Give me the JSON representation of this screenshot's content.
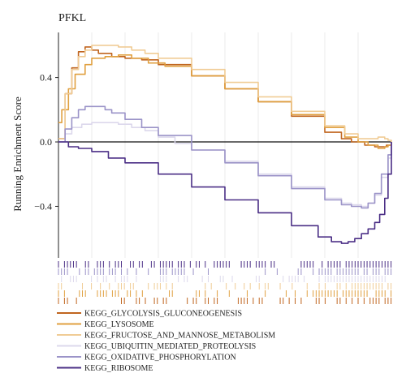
{
  "chart_data": {
    "type": "line",
    "title": "PFKL",
    "ylabel": "Running Enrichment Score",
    "xlabel": "",
    "ylim": [
      -0.72,
      0.68
    ],
    "xlim": [
      0,
      100
    ],
    "yticks": [
      -0.4,
      0.0,
      0.4
    ],
    "ytick_labels": [
      "−0.4",
      "0.0",
      "0.4"
    ],
    "grid": "vertical",
    "legend_position": "bottom-left",
    "series": [
      {
        "name": "KEGG_GLYCOLYSIS_GLUCONEOGENESIS",
        "color": "#c0651f",
        "x": [
          0,
          2,
          4,
          6,
          8,
          10,
          12,
          16,
          20,
          25,
          30,
          40,
          50,
          60,
          70,
          80,
          85,
          88,
          92,
          95,
          97,
          98.5,
          100
        ],
        "y": [
          0.02,
          0.3,
          0.46,
          0.56,
          0.59,
          0.57,
          0.55,
          0.53,
          0.52,
          0.51,
          0.48,
          0.41,
          0.33,
          0.25,
          0.16,
          0.06,
          0.02,
          0.0,
          -0.02,
          -0.03,
          -0.03,
          -0.02,
          0.0
        ]
      },
      {
        "name": "KEGG_LYSOSOME",
        "color": "#e0a040",
        "x": [
          0,
          1,
          3,
          5,
          8,
          10,
          14,
          18,
          22,
          27,
          32,
          40,
          50,
          60,
          70,
          80,
          86,
          90,
          93,
          96,
          98,
          99,
          100
        ],
        "y": [
          0.12,
          0.2,
          0.33,
          0.42,
          0.48,
          0.52,
          0.53,
          0.54,
          0.52,
          0.49,
          0.47,
          0.41,
          0.33,
          0.25,
          0.17,
          0.09,
          0.03,
          0.0,
          -0.02,
          -0.04,
          -0.03,
          -0.02,
          0.0
        ]
      },
      {
        "name": "KEGG_FRUCTOSE_AND_MANNOSE_METABOLISM",
        "color": "#f0cc95",
        "x": [
          0,
          2,
          4,
          6,
          8,
          10,
          14,
          18,
          22,
          26,
          30,
          40,
          50,
          60,
          70,
          80,
          86,
          90,
          94,
          96,
          98,
          99,
          100
        ],
        "y": [
          0.02,
          0.3,
          0.45,
          0.53,
          0.57,
          0.6,
          0.6,
          0.59,
          0.57,
          0.55,
          0.52,
          0.45,
          0.37,
          0.28,
          0.19,
          0.1,
          0.05,
          0.02,
          0.02,
          0.03,
          0.02,
          0.01,
          0.0
        ]
      },
      {
        "name": "KEGG_UBIQUITIN_MEDIATED_PROTEOLYSIS",
        "color": "#dcd8ec",
        "x": [
          0,
          2,
          4,
          7,
          10,
          14,
          18,
          22,
          26,
          30,
          35,
          40,
          50,
          60,
          70,
          80,
          85,
          88,
          91,
          93,
          95,
          97,
          99,
          100
        ],
        "y": [
          0.0,
          0.05,
          0.09,
          0.11,
          0.12,
          0.12,
          0.11,
          0.09,
          0.07,
          0.03,
          -0.01,
          -0.05,
          -0.12,
          -0.2,
          -0.28,
          -0.35,
          -0.38,
          -0.39,
          -0.4,
          -0.38,
          -0.33,
          -0.22,
          -0.1,
          0.0
        ]
      },
      {
        "name": "KEGG_OXIDATIVE_PHOSPHORYLATION",
        "color": "#9b93c8",
        "x": [
          0,
          2,
          4,
          6,
          8,
          10,
          12,
          14,
          16,
          20,
          25,
          30,
          40,
          50,
          60,
          70,
          80,
          85,
          88,
          91,
          93,
          95,
          97,
          99,
          100
        ],
        "y": [
          0.0,
          0.08,
          0.15,
          0.2,
          0.22,
          0.22,
          0.22,
          0.2,
          0.18,
          0.14,
          0.09,
          0.04,
          -0.05,
          -0.13,
          -0.21,
          -0.29,
          -0.36,
          -0.39,
          -0.4,
          -0.41,
          -0.38,
          -0.32,
          -0.2,
          -0.08,
          0.0
        ]
      },
      {
        "name": "KEGG_RIBOSOME",
        "color": "#4b2f86",
        "x": [
          0,
          3,
          6,
          10,
          15,
          20,
          30,
          40,
          50,
          60,
          70,
          78,
          82,
          85,
          87,
          89,
          91,
          93,
          95,
          96.5,
          98,
          99,
          100
        ],
        "y": [
          0.0,
          -0.03,
          -0.04,
          -0.06,
          -0.1,
          -0.13,
          -0.2,
          -0.28,
          -0.36,
          -0.44,
          -0.52,
          -0.59,
          -0.62,
          -0.63,
          -0.62,
          -0.6,
          -0.57,
          -0.54,
          -0.5,
          -0.45,
          -0.35,
          -0.2,
          0.0
        ]
      }
    ]
  }
}
